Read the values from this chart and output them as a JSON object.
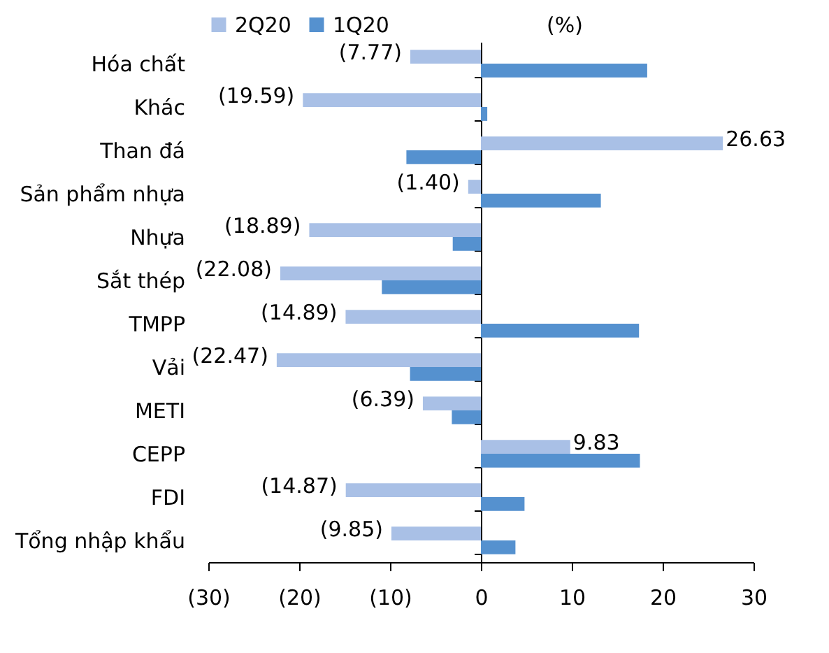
{
  "chart_data": {
    "type": "bar",
    "orientation": "horizontal",
    "categories": [
      "Hóa chất",
      "Khác",
      "Than đá",
      "Sản phẩm nhựa",
      "Nhựa",
      "Sắt thép",
      "TMPP",
      "Vải",
      "METI",
      "CEPP",
      "FDI",
      "Tổng nhập khẩu"
    ],
    "series": [
      {
        "name": "2Q20",
        "color": "#a9c0e6",
        "values": [
          -7.77,
          -19.59,
          26.63,
          -1.4,
          -18.89,
          -22.08,
          -14.89,
          -22.47,
          -6.39,
          9.83,
          -14.87,
          -9.85
        ],
        "value_labels": [
          "(7.77)",
          "(19.59)",
          "26.63",
          "(1.40)",
          "(18.89)",
          "(22.08)",
          "(14.89)",
          "(22.47)",
          "(6.39)",
          "9.83",
          "(14.87)",
          "(9.85)"
        ]
      },
      {
        "name": "1Q20",
        "color": "#5591cf",
        "values": [
          18.3,
          0.7,
          -8.2,
          13.2,
          -3.1,
          -10.9,
          17.4,
          -7.8,
          -3.2,
          17.5,
          4.8,
          3.8
        ]
      }
    ],
    "xlim": [
      -30,
      30
    ],
    "xticks": [
      {
        "value": -30,
        "label": "(30)"
      },
      {
        "value": -20,
        "label": "(20)"
      },
      {
        "value": -10,
        "label": "(10)"
      },
      0,
      10,
      20,
      30
    ],
    "annotations": [
      "(%)"
    ],
    "legend": "top"
  }
}
